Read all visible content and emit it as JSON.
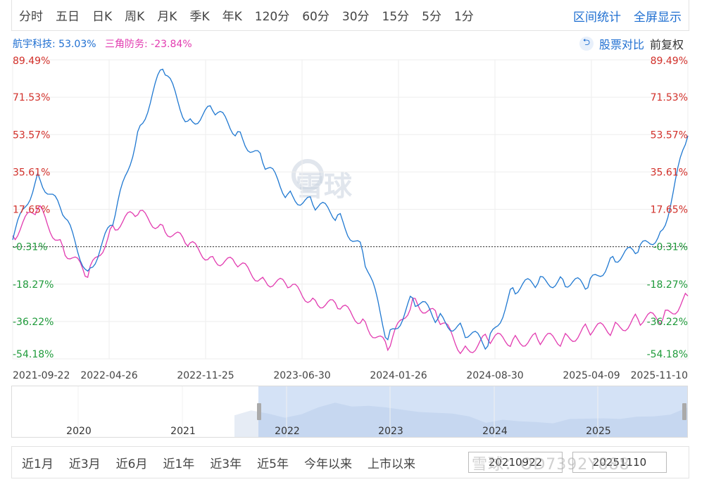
{
  "toolbar": {
    "periods": [
      "分时",
      "五日",
      "日K",
      "周K",
      "月K",
      "季K",
      "年K",
      "120分",
      "60分",
      "30分",
      "15分",
      "5分",
      "1分"
    ],
    "interval_stats": "区间统计",
    "fullscreen": "全屏显示"
  },
  "legend": {
    "series_a": "航宇科技: 53.03%",
    "series_b": "三角防务: -23.84%"
  },
  "controls": {
    "compare": "股票对比",
    "adjust": "前复权"
  },
  "navigator": {
    "years": [
      "2020",
      "2021",
      "2022",
      "2023",
      "2024",
      "2025"
    ]
  },
  "ranges": [
    "近1月",
    "近3月",
    "近6月",
    "近1年",
    "近3年",
    "近5年",
    "今年以来",
    "上市以来"
  ],
  "dates": {
    "start": "20210922",
    "end": "20251110"
  },
  "watermark": {
    "center": "雪球",
    "bottom": "雪球：OD7392Y888"
  },
  "colors": {
    "series_a": "#1f78d1",
    "series_b": "#e23bb0",
    "positive": "#d2302a",
    "negative": "#1e9a3a"
  },
  "chart_data": {
    "type": "line",
    "x": [
      "2021-09-22",
      "2021-11",
      "2022-01",
      "2022-03",
      "2022-04-26",
      "2022-06",
      "2022-08",
      "2022-10",
      "2022-11-25",
      "2023-01",
      "2023-03",
      "2023-05",
      "2023-06-30",
      "2023-09",
      "2023-11",
      "2024-01-26",
      "2024-03",
      "2024-05",
      "2024-07",
      "2024-08-30",
      "2024-10",
      "2024-12",
      "2025-02",
      "2025-04-09",
      "2025-06",
      "2025-08",
      "2025-10",
      "2025-11-10"
    ],
    "series": [
      {
        "name": "航宇科技",
        "values": [
          3,
          35,
          15,
          -12,
          10,
          55,
          85,
          60,
          65,
          55,
          40,
          25,
          20,
          15,
          -3,
          -45,
          -25,
          -35,
          -40,
          -48,
          -20,
          -18,
          -16,
          -20,
          -5,
          -3,
          8,
          53
        ]
      },
      {
        "name": "三角防务",
        "values": [
          5,
          18,
          0,
          -15,
          10,
          15,
          10,
          0,
          -5,
          -10,
          -15,
          -20,
          -25,
          -30,
          -35,
          -50,
          -25,
          -35,
          -50,
          -45,
          -45,
          -45,
          -45,
          -40,
          -40,
          -35,
          -35,
          -24
        ]
      }
    ],
    "ytick_labels_left": [
      "89.49%",
      "71.53%",
      "53.57%",
      "35.61%",
      "17.65%",
      "-0.31%",
      "-18.27%",
      "-36.22%",
      "-54.18%"
    ],
    "xtick_labels": [
      "2021-09-22",
      "2022-04-26",
      "2022-11-25",
      "2023-06-30",
      "2024-01-26",
      "2024-08-30",
      "2025-04-09",
      "2025-11-10"
    ],
    "ylim": [
      -54.18,
      89.49
    ],
    "baseline": -0.31,
    "grid": true
  }
}
